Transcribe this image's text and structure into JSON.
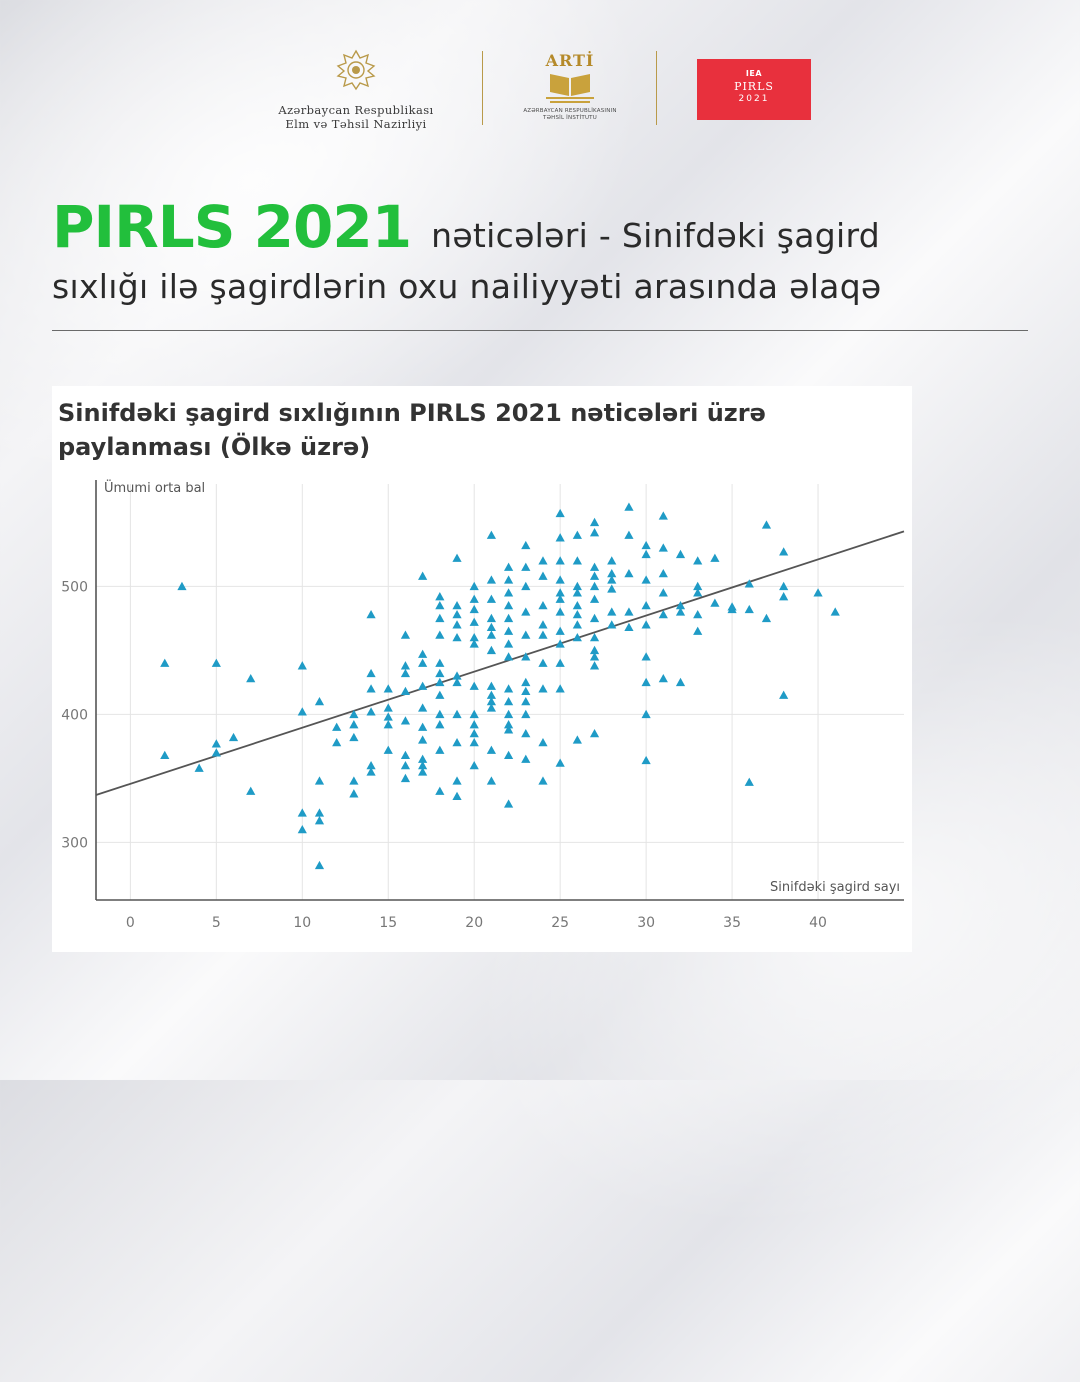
{
  "header": {
    "ministry": {
      "line1": "Azərbaycan Respublikası",
      "line2": "Elm və Təhsil Nazirliyi"
    },
    "arti": {
      "title": "ARTİ",
      "sub1": "AZƏRBAYCAN RESPUBLİKASININ",
      "sub2": "TƏHSİL İNSTİTUTU"
    },
    "pirls_logo": {
      "org": "IEA",
      "name": "PIRLS",
      "year": "2021"
    }
  },
  "headline": {
    "strong": "PIRLS 2021",
    "rest1": "nəticələri - Sinifdəki şagird",
    "line2": "sıxlığı ilə şagirdlərin oxu nailiyyəti arasında əlaqə"
  },
  "colors": {
    "accent_green": "#22bf3c",
    "point": "#1f9bc6",
    "pirls_red": "#e8303d",
    "trend": "#555555"
  },
  "chart_data": {
    "type": "scatter",
    "title": "Sinifdəki şagird sıxlığının PIRLS 2021 nəticələri üzrə paylanması (Ölkə üzrə)",
    "xlabel": "Sinifdəki şagird sayı",
    "ylabel": "Ümumi orta bal",
    "xlim": [
      -2,
      45
    ],
    "ylim": [
      255,
      580
    ],
    "xticks": [
      0,
      5,
      10,
      15,
      20,
      25,
      30,
      35,
      40
    ],
    "yticks": [
      300,
      400,
      500
    ],
    "grid": true,
    "marker": "triangle",
    "trendline": {
      "x": [
        -2,
        45
      ],
      "y": [
        337,
        543
      ]
    },
    "points": [
      [
        2,
        440
      ],
      [
        2,
        368
      ],
      [
        3,
        500
      ],
      [
        4,
        358
      ],
      [
        5,
        440
      ],
      [
        5,
        377
      ],
      [
        5,
        370
      ],
      [
        6,
        382
      ],
      [
        7,
        428
      ],
      [
        7,
        340
      ],
      [
        10,
        438
      ],
      [
        10,
        402
      ],
      [
        10,
        323
      ],
      [
        10,
        310
      ],
      [
        11,
        410
      ],
      [
        11,
        348
      ],
      [
        11,
        323
      ],
      [
        11,
        317
      ],
      [
        11,
        282
      ],
      [
        12,
        390
      ],
      [
        12,
        378
      ],
      [
        13,
        400
      ],
      [
        13,
        392
      ],
      [
        13,
        382
      ],
      [
        13,
        348
      ],
      [
        13,
        338
      ],
      [
        14,
        478
      ],
      [
        14,
        432
      ],
      [
        14,
        420
      ],
      [
        14,
        402
      ],
      [
        14,
        360
      ],
      [
        14,
        355
      ],
      [
        15,
        420
      ],
      [
        15,
        405
      ],
      [
        15,
        398
      ],
      [
        15,
        392
      ],
      [
        15,
        372
      ],
      [
        16,
        462
      ],
      [
        16,
        438
      ],
      [
        16,
        432
      ],
      [
        16,
        418
      ],
      [
        16,
        395
      ],
      [
        16,
        368
      ],
      [
        16,
        360
      ],
      [
        16,
        350
      ],
      [
        17,
        508
      ],
      [
        17,
        447
      ],
      [
        17,
        440
      ],
      [
        17,
        422
      ],
      [
        17,
        405
      ],
      [
        17,
        390
      ],
      [
        17,
        380
      ],
      [
        17,
        365
      ],
      [
        17,
        360
      ],
      [
        17,
        355
      ],
      [
        18,
        492
      ],
      [
        18,
        485
      ],
      [
        18,
        475
      ],
      [
        18,
        462
      ],
      [
        18,
        440
      ],
      [
        18,
        432
      ],
      [
        18,
        425
      ],
      [
        18,
        415
      ],
      [
        18,
        400
      ],
      [
        18,
        392
      ],
      [
        18,
        372
      ],
      [
        18,
        340
      ],
      [
        19,
        522
      ],
      [
        19,
        485
      ],
      [
        19,
        478
      ],
      [
        19,
        470
      ],
      [
        19,
        460
      ],
      [
        19,
        430
      ],
      [
        19,
        425
      ],
      [
        19,
        400
      ],
      [
        19,
        378
      ],
      [
        19,
        348
      ],
      [
        19,
        336
      ],
      [
        20,
        500
      ],
      [
        20,
        490
      ],
      [
        20,
        482
      ],
      [
        20,
        472
      ],
      [
        20,
        460
      ],
      [
        20,
        455
      ],
      [
        20,
        422
      ],
      [
        20,
        400
      ],
      [
        20,
        392
      ],
      [
        20,
        385
      ],
      [
        20,
        378
      ],
      [
        20,
        360
      ],
      [
        21,
        540
      ],
      [
        21,
        505
      ],
      [
        21,
        490
      ],
      [
        21,
        475
      ],
      [
        21,
        468
      ],
      [
        21,
        462
      ],
      [
        21,
        450
      ],
      [
        21,
        422
      ],
      [
        21,
        415
      ],
      [
        21,
        410
      ],
      [
        21,
        405
      ],
      [
        21,
        372
      ],
      [
        21,
        348
      ],
      [
        22,
        515
      ],
      [
        22,
        505
      ],
      [
        22,
        495
      ],
      [
        22,
        485
      ],
      [
        22,
        475
      ],
      [
        22,
        465
      ],
      [
        22,
        455
      ],
      [
        22,
        445
      ],
      [
        22,
        420
      ],
      [
        22,
        410
      ],
      [
        22,
        400
      ],
      [
        22,
        392
      ],
      [
        22,
        388
      ],
      [
        22,
        368
      ],
      [
        22,
        330
      ],
      [
        23,
        532
      ],
      [
        23,
        515
      ],
      [
        23,
        500
      ],
      [
        23,
        480
      ],
      [
        23,
        462
      ],
      [
        23,
        445
      ],
      [
        23,
        425
      ],
      [
        23,
        418
      ],
      [
        23,
        410
      ],
      [
        23,
        400
      ],
      [
        23,
        385
      ],
      [
        23,
        365
      ],
      [
        24,
        520
      ],
      [
        24,
        508
      ],
      [
        24,
        485
      ],
      [
        24,
        470
      ],
      [
        24,
        462
      ],
      [
        24,
        440
      ],
      [
        24,
        420
      ],
      [
        24,
        378
      ],
      [
        24,
        348
      ],
      [
        25,
        557
      ],
      [
        25,
        538
      ],
      [
        25,
        520
      ],
      [
        25,
        505
      ],
      [
        25,
        495
      ],
      [
        25,
        490
      ],
      [
        25,
        480
      ],
      [
        25,
        465
      ],
      [
        25,
        455
      ],
      [
        25,
        440
      ],
      [
        25,
        420
      ],
      [
        25,
        362
      ],
      [
        26,
        540
      ],
      [
        26,
        520
      ],
      [
        26,
        500
      ],
      [
        26,
        495
      ],
      [
        26,
        485
      ],
      [
        26,
        478
      ],
      [
        26,
        470
      ],
      [
        26,
        460
      ],
      [
        26,
        380
      ],
      [
        27,
        550
      ],
      [
        27,
        542
      ],
      [
        27,
        515
      ],
      [
        27,
        508
      ],
      [
        27,
        500
      ],
      [
        27,
        490
      ],
      [
        27,
        475
      ],
      [
        27,
        460
      ],
      [
        27,
        450
      ],
      [
        27,
        445
      ],
      [
        27,
        438
      ],
      [
        27,
        385
      ],
      [
        28,
        520
      ],
      [
        28,
        510
      ],
      [
        28,
        505
      ],
      [
        28,
        498
      ],
      [
        28,
        480
      ],
      [
        28,
        470
      ],
      [
        29,
        562
      ],
      [
        29,
        540
      ],
      [
        29,
        510
      ],
      [
        29,
        480
      ],
      [
        29,
        468
      ],
      [
        30,
        532
      ],
      [
        30,
        525
      ],
      [
        30,
        505
      ],
      [
        30,
        485
      ],
      [
        30,
        470
      ],
      [
        30,
        445
      ],
      [
        30,
        425
      ],
      [
        30,
        400
      ],
      [
        30,
        364
      ],
      [
        31,
        555
      ],
      [
        31,
        530
      ],
      [
        31,
        510
      ],
      [
        31,
        495
      ],
      [
        31,
        478
      ],
      [
        31,
        428
      ],
      [
        32,
        525
      ],
      [
        32,
        485
      ],
      [
        32,
        480
      ],
      [
        32,
        425
      ],
      [
        33,
        520
      ],
      [
        33,
        500
      ],
      [
        33,
        495
      ],
      [
        33,
        478
      ],
      [
        33,
        465
      ],
      [
        34,
        522
      ],
      [
        34,
        487
      ],
      [
        35,
        484
      ],
      [
        35,
        482
      ],
      [
        36,
        502
      ],
      [
        36,
        482
      ],
      [
        36,
        347
      ],
      [
        37,
        548
      ],
      [
        37,
        475
      ],
      [
        38,
        527
      ],
      [
        38,
        500
      ],
      [
        38,
        492
      ],
      [
        38,
        415
      ],
      [
        40,
        495
      ],
      [
        41,
        480
      ]
    ]
  }
}
